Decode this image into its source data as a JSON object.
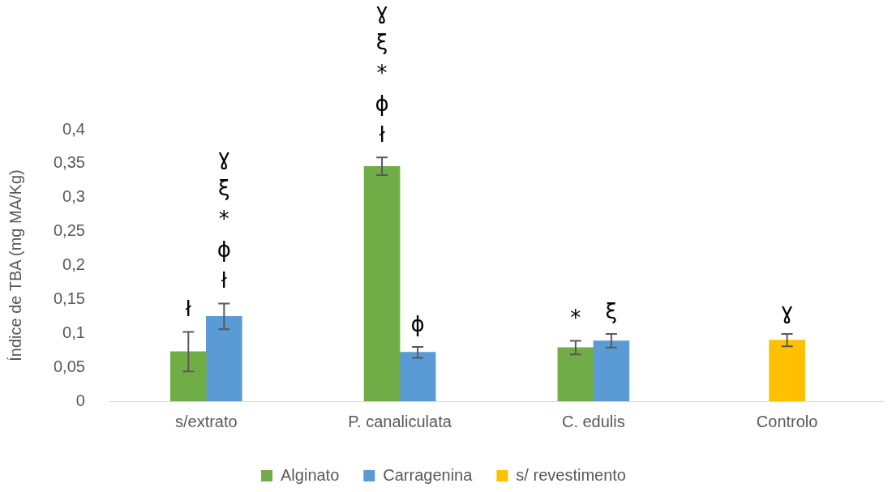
{
  "chart_data": {
    "type": "bar",
    "ylabel": "Índice de TBA (mg MA/Kg)",
    "categories": [
      "s/extrato",
      "P. canaliculata",
      "C. edulis",
      "Controlo"
    ],
    "series": [
      {
        "name": "Alginato",
        "color": "#70ad47",
        "values": [
          0.073,
          0.346,
          0.079,
          null
        ],
        "errors": [
          0.029,
          0.013,
          0.01,
          null
        ],
        "value_labels": [
          "ł",
          "ɣ\nξ\n*\nϕ\nł",
          "*",
          null
        ]
      },
      {
        "name": "Carragenina",
        "color": "#5b9bd5",
        "values": [
          0.125,
          0.072,
          0.089,
          null
        ],
        "errors": [
          0.019,
          0.008,
          0.01,
          null
        ],
        "value_labels": [
          "ɣ\nξ\n*\nϕ\nł",
          "ϕ",
          "ξ",
          null
        ]
      },
      {
        "name": "s/ revestimento",
        "color": "#ffc000",
        "values": [
          null,
          null,
          null,
          0.09
        ],
        "errors": [
          null,
          null,
          null,
          0.009
        ],
        "value_labels": [
          null,
          null,
          null,
          "ɣ"
        ]
      }
    ],
    "ylim": [
      0,
      0.4
    ],
    "yticks": [
      {
        "value": 0,
        "label": "0"
      },
      {
        "value": 0.05,
        "label": "0,05"
      },
      {
        "value": 0.1,
        "label": "0,1"
      },
      {
        "value": 0.15,
        "label": "0,15"
      },
      {
        "value": 0.2,
        "label": "0,2"
      },
      {
        "value": 0.25,
        "label": "0,25"
      },
      {
        "value": 0.3,
        "label": "0,3"
      },
      {
        "value": 0.35,
        "label": "0,35"
      },
      {
        "value": 0.4,
        "label": "0,4"
      }
    ],
    "grid": false,
    "legend": "bottom"
  }
}
